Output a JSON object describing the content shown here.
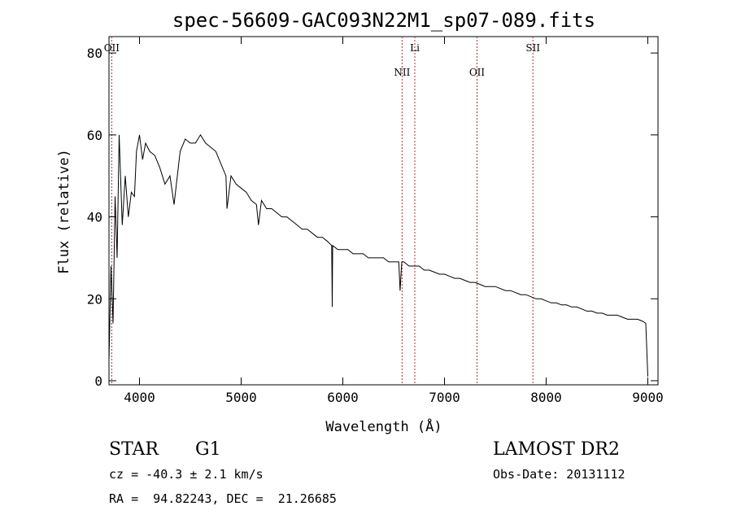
{
  "chart_data": {
    "type": "line",
    "title": "spec-56609-GAC093N22M1_sp07-089.fits",
    "xlabel": "Wavelength (Å)",
    "ylabel": "Flux (relative)",
    "xlim": [
      3700,
      9100
    ],
    "ylim": [
      -1,
      84
    ],
    "xticks": [
      4000,
      5000,
      6000,
      7000,
      8000,
      9000
    ],
    "yticks": [
      0,
      20,
      40,
      60,
      80
    ],
    "grid": false,
    "series": [
      {
        "x": [
          3700,
          3720,
          3740,
          3760,
          3780,
          3800,
          3830,
          3860,
          3890,
          3920,
          3950,
          3970,
          4000,
          4030,
          4060,
          4100,
          4150,
          4200,
          4250,
          4300,
          4340,
          4400,
          4450,
          4500,
          4550,
          4600,
          4650,
          4700,
          4750,
          4800,
          4850,
          4861,
          4900,
          4950,
          5000,
          5050,
          5100,
          5150,
          5170,
          5200,
          5250,
          5300,
          5350,
          5400,
          5450,
          5500,
          5550,
          5600,
          5650,
          5700,
          5750,
          5800,
          5850,
          5890,
          5896,
          5900,
          5950,
          6000,
          6050,
          6100,
          6150,
          6200,
          6250,
          6300,
          6350,
          6400,
          6450,
          6500,
          6550,
          6563,
          6580,
          6600,
          6650,
          6700,
          6750,
          6800,
          6850,
          6900,
          6950,
          7000,
          7050,
          7100,
          7150,
          7200,
          7250,
          7300,
          7350,
          7400,
          7450,
          7500,
          7550,
          7600,
          7650,
          7700,
          7750,
          7800,
          7850,
          7900,
          7950,
          8000,
          8050,
          8100,
          8150,
          8200,
          8250,
          8300,
          8350,
          8400,
          8450,
          8500,
          8550,
          8600,
          8650,
          8700,
          8750,
          8800,
          8850,
          8900,
          8950,
          8980,
          9000
        ],
        "y": [
          5,
          28,
          14,
          45,
          30,
          60,
          38,
          50,
          40,
          46,
          45,
          56,
          60,
          54,
          58,
          56,
          55,
          52,
          48,
          50,
          43,
          56,
          59,
          58,
          58,
          60,
          58,
          57,
          56,
          53,
          50,
          42,
          50,
          48,
          47,
          46,
          44,
          43,
          38,
          44,
          42,
          42,
          41,
          40,
          40,
          39,
          38,
          37,
          37,
          36,
          35,
          35,
          34,
          33,
          18,
          33,
          32,
          32,
          32,
          31,
          31,
          31,
          30,
          30,
          30,
          30,
          29,
          29,
          29,
          22,
          29,
          29,
          28,
          28,
          28,
          27,
          27,
          26.5,
          26,
          26,
          25.5,
          25,
          25,
          24.5,
          24,
          24,
          23.5,
          23,
          23,
          23,
          22.5,
          22,
          22,
          21.5,
          21,
          21,
          20.5,
          20,
          20,
          19.5,
          19,
          19,
          18.5,
          18.5,
          18,
          18,
          17.5,
          17,
          17,
          16.5,
          16.5,
          16,
          16,
          16,
          15.5,
          15,
          15,
          15,
          14.5,
          14,
          1
        ]
      }
    ],
    "lines": [
      {
        "label": "OII",
        "x": 3727
      },
      {
        "label": "NII",
        "x": 6583
      },
      {
        "label": "Li",
        "x": 6708
      },
      {
        "label": "OII",
        "x": 7320
      },
      {
        "label": "SII",
        "x": 7870
      }
    ]
  },
  "info": {
    "object_class": "STAR",
    "subclass": "G1",
    "survey": "LAMOST DR2",
    "redshift": "cz = -40.3 ± 2.1 km/s",
    "obs_date": "Obs-Date: 20131112",
    "coords": "RA =  94.82243, DEC =  21.26685"
  }
}
